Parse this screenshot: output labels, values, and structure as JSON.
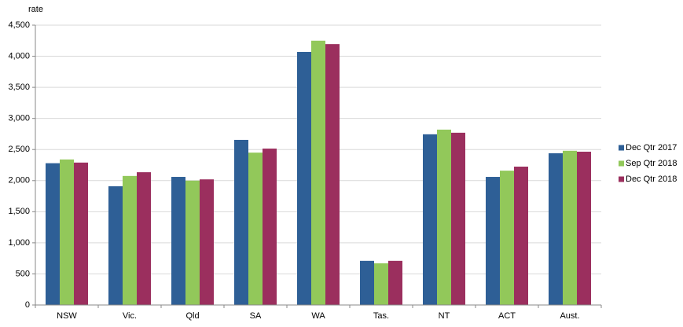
{
  "chart_data": {
    "type": "bar",
    "y_label": "rate",
    "categories": [
      "NSW",
      "Vic.",
      "Qld",
      "SA",
      "WA",
      "Tas.",
      "NT",
      "ACT",
      "Aust."
    ],
    "series": [
      {
        "name": "Dec Qtr 2017",
        "color": "#2e5f96",
        "values": [
          2280,
          1910,
          2060,
          2655,
          4070,
          710,
          2745,
          2060,
          2440
        ]
      },
      {
        "name": "Sep Qtr 2018",
        "color": "#92c85a",
        "values": [
          2340,
          2075,
          2000,
          2450,
          4250,
          670,
          2820,
          2160,
          2480
        ]
      },
      {
        "name": "Dec Qtr 2018",
        "color": "#9b2f5e",
        "values": [
          2290,
          2135,
          2020,
          2515,
          4195,
          710,
          2770,
          2225,
          2465
        ]
      }
    ],
    "ylim": [
      0,
      4500
    ],
    "yticks": [
      0,
      500,
      {
        "value": 1000,
        "label": "1,000"
      },
      {
        "value": 1500,
        "label": "1,500"
      },
      {
        "value": 2000,
        "label": "2,000"
      },
      {
        "value": 2500,
        "label": "2,500"
      },
      {
        "value": 3000,
        "label": "3,000"
      },
      {
        "value": 3500,
        "label": "3,500"
      },
      {
        "value": 4000,
        "label": "4,000"
      },
      {
        "value": 4500,
        "label": "4,500"
      }
    ],
    "grid": true,
    "legend": "right"
  }
}
